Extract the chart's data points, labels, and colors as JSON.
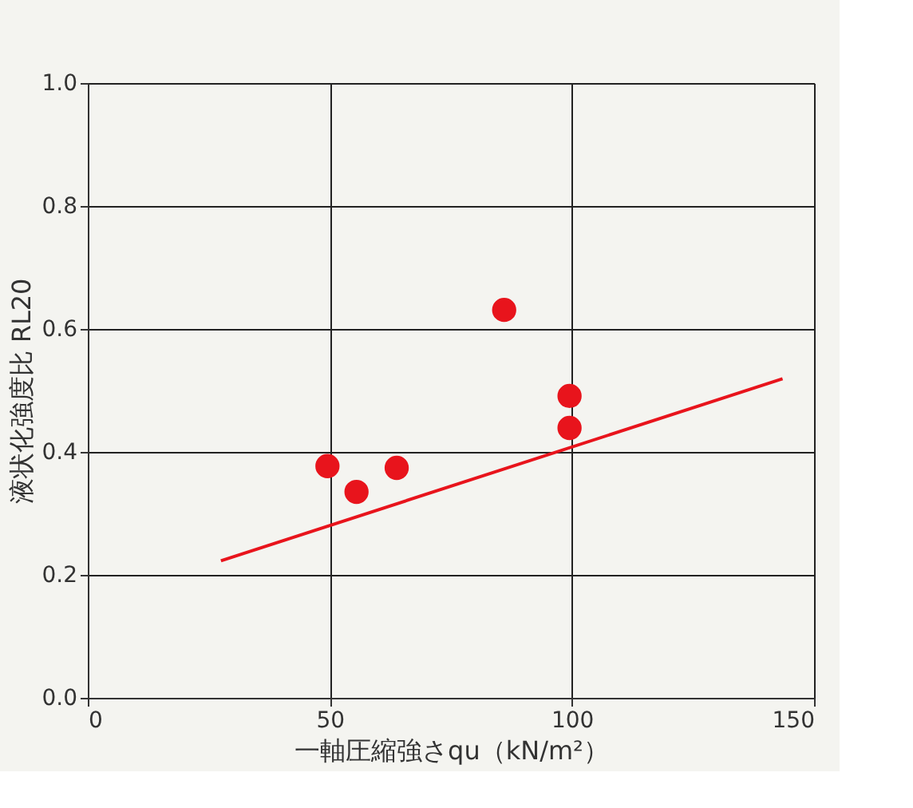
{
  "chart_data": {
    "type": "scatter",
    "xlabel": "一軸圧縮強さqu（kN/m²）",
    "ylabel": "液状化強度比 RL20",
    "xlim": [
      0,
      150
    ],
    "xticks": [
      0,
      50,
      100,
      150
    ],
    "ylim": [
      0,
      1
    ],
    "yticks": [
      {
        "value": 0,
        "label": "0.0"
      },
      0.2,
      0.4,
      0.6,
      0.8,
      {
        "value": 1,
        "label": "1.0"
      }
    ],
    "grid": true,
    "series": [
      {
        "color": "#e8141c",
        "marker": "circle",
        "x": [
          49.5,
          55.5,
          63.8,
          86,
          99.5,
          99.5
        ],
        "values": [
          0.377,
          0.335,
          0.374,
          0.631,
          0.491,
          0.439
        ]
      },
      {
        "type": "line",
        "color": "#e8141c",
        "marker": "none",
        "line_style": "solid",
        "x": [
          27.5,
          143.5
        ],
        "values": [
          0.223,
          0.519
        ]
      }
    ]
  }
}
